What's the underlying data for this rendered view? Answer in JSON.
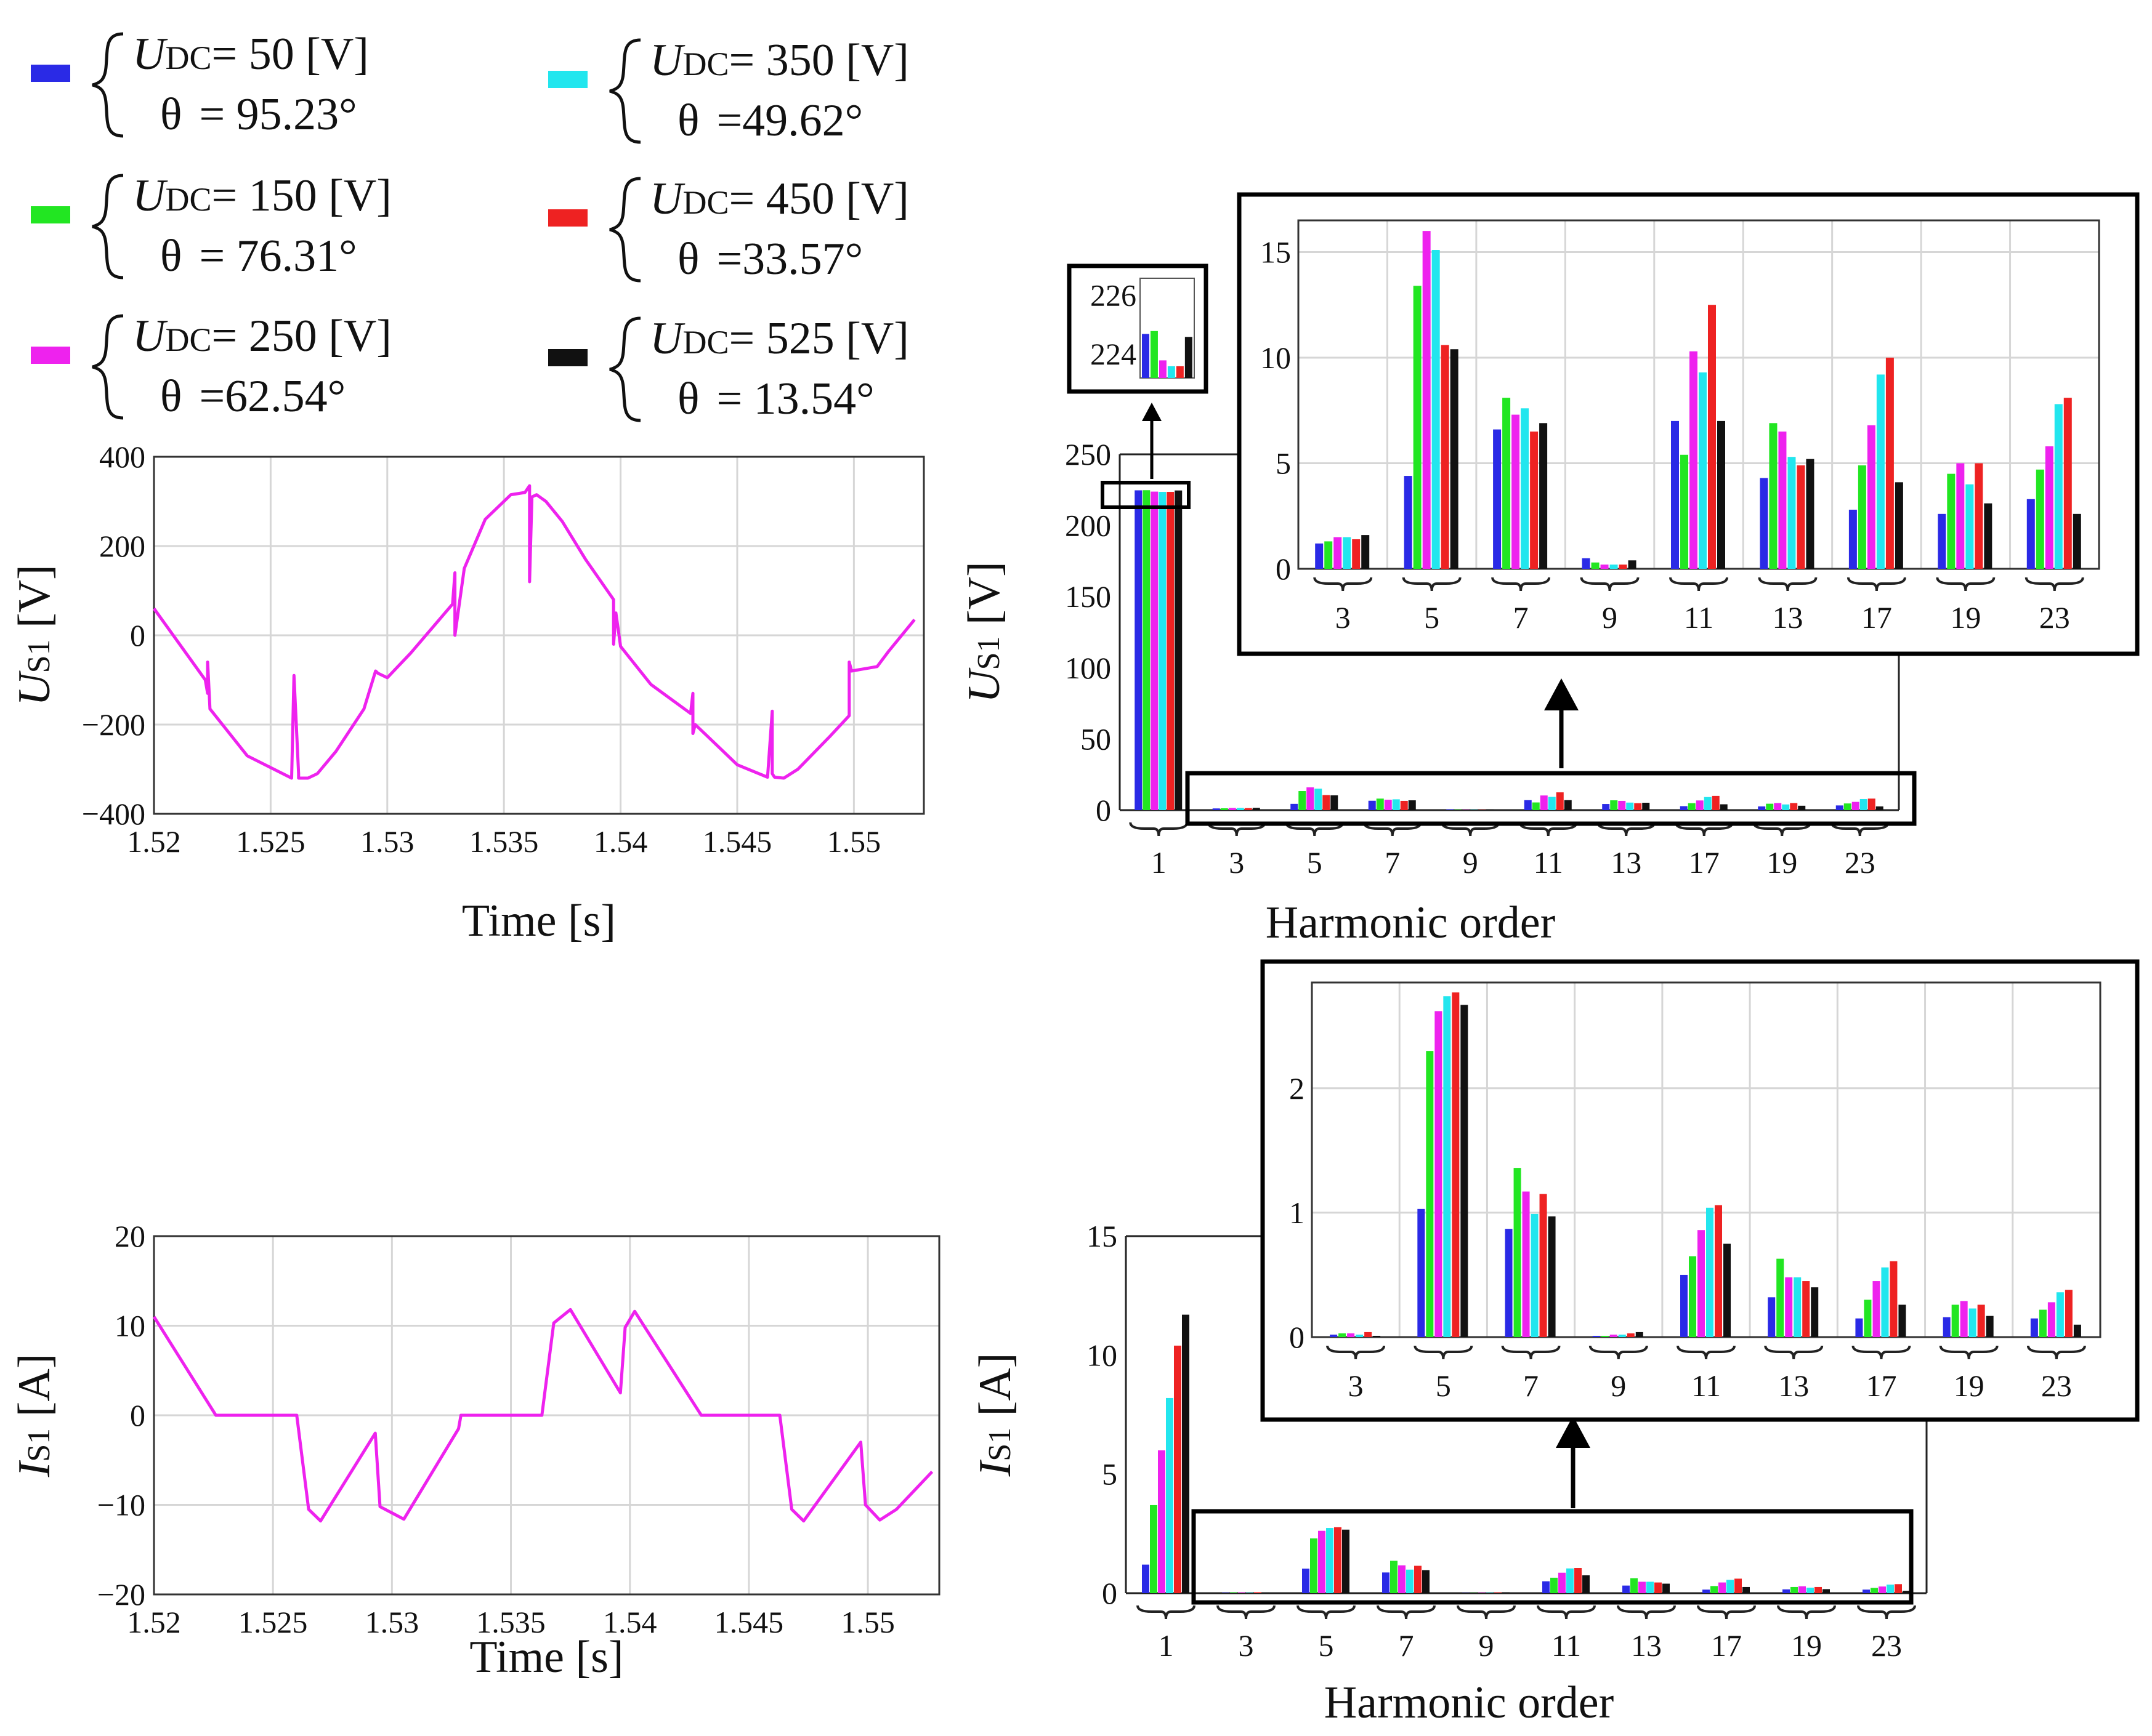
{
  "colors": {
    "udc50": "#2a2ae6",
    "udc150": "#22e622",
    "udc250": "#ee22ee",
    "udc350": "#22e6ee",
    "udc450": "#ee2222",
    "udc525": "#111111",
    "trace": "#ee22ee"
  },
  "legend": [
    {
      "series": "udc50",
      "udc_label": "U",
      "udc_sub": "DC",
      "udc_value": "= 50  [V]",
      "theta_symbol": "θ",
      "theta_value": "= 95.23°"
    },
    {
      "series": "udc150",
      "udc_label": "U",
      "udc_sub": "DC",
      "udc_value": "= 150 [V]",
      "theta_symbol": "θ",
      "theta_value": "= 76.31°"
    },
    {
      "series": "udc250",
      "udc_label": "U",
      "udc_sub": "DC",
      "udc_value": "= 250 [V]",
      "theta_symbol": "θ",
      "theta_value": "=62.54°"
    },
    {
      "series": "udc350",
      "udc_label": "U",
      "udc_sub": "DC",
      "udc_value": "= 350 [V]",
      "theta_symbol": "θ",
      "theta_value": "=49.62°"
    },
    {
      "series": "udc450",
      "udc_label": "U",
      "udc_sub": "DC",
      "udc_value": "= 450 [V]",
      "theta_symbol": "θ",
      "theta_value": "=33.57°"
    },
    {
      "series": "udc525",
      "udc_label": "U",
      "udc_sub": "DC",
      "udc_value": "= 525 [V]",
      "theta_symbol": "θ",
      "theta_value": "= 13.54°"
    }
  ],
  "chart_data": [
    {
      "id": "us1-time",
      "type": "line",
      "xlabel": "Time [s]",
      "ylabel_main": "U",
      "ylabel_sub": "S1",
      "ylabel_unit": "[V]",
      "xlim": [
        1.52,
        1.553
      ],
      "ylim": [
        -400,
        400
      ],
      "xticks": [
        1.52,
        1.525,
        1.53,
        1.535,
        1.54,
        1.545,
        1.55
      ],
      "xtick_labels": [
        "1.52",
        "1.525",
        "1.53",
        "1.535",
        "1.54",
        "1.545",
        "1.55"
      ],
      "yticks": [
        -400,
        -200,
        0,
        200,
        400
      ],
      "ytick_labels": [
        "−400",
        "−200",
        "0",
        "200",
        "400"
      ],
      "series": [
        {
          "color": "udc250",
          "x": [
            1.52,
            1.5222,
            1.5223,
            1.5223,
            1.5224,
            1.524,
            1.5259,
            1.526,
            1.5262,
            1.5262,
            1.5266,
            1.527,
            1.5278,
            1.529,
            1.5295,
            1.5296,
            1.53,
            1.531,
            1.5328,
            1.5329,
            1.5329,
            1.5333,
            1.5342,
            1.5353,
            1.5359,
            1.5361,
            1.5361,
            1.5362,
            1.5364,
            1.5368,
            1.5375,
            1.5385,
            1.5397,
            1.5397,
            1.5398,
            1.54,
            1.5413,
            1.543,
            1.5431,
            1.5431,
            1.5432,
            1.545,
            1.5463,
            1.5465,
            1.5465,
            1.5466,
            1.547,
            1.5476,
            1.549,
            1.5498,
            1.5498,
            1.5499,
            1.551,
            1.5515,
            1.5526
          ],
          "y": [
            60,
            -100,
            -130,
            -60,
            -165,
            -270,
            -320,
            -90,
            -310,
            -320,
            -320,
            -310,
            -260,
            -165,
            -80,
            -85,
            -95,
            -40,
            70,
            140,
            0,
            150,
            260,
            315,
            320,
            335,
            120,
            310,
            315,
            300,
            255,
            170,
            80,
            -20,
            50,
            -25,
            -110,
            -175,
            -130,
            -220,
            -200,
            -290,
            -318,
            -170,
            -310,
            -318,
            -320,
            -300,
            -225,
            -180,
            -60,
            -80,
            -70,
            -35,
            35
          ]
        }
      ]
    },
    {
      "id": "is1-time",
      "type": "line",
      "xlabel": "Time [s]",
      "ylabel_main": "I",
      "ylabel_sub": "S1",
      "ylabel_unit": "[A]",
      "xlim": [
        1.52,
        1.553
      ],
      "ylim": [
        -20,
        20
      ],
      "xticks": [
        1.52,
        1.525,
        1.53,
        1.535,
        1.54,
        1.545,
        1.55
      ],
      "xtick_labels": [
        "1.52",
        "1.525",
        "1.53",
        "1.535",
        "1.54",
        "1.545",
        "1.55"
      ],
      "yticks": [
        -20,
        -10,
        0,
        10,
        20
      ],
      "ytick_labels": [
        "−20",
        "−10",
        "0",
        "10",
        "20"
      ],
      "series": [
        {
          "color": "udc250",
          "x": [
            1.52,
            1.5226,
            1.526,
            1.5265,
            1.527,
            1.5293,
            1.5295,
            1.5305,
            1.5328,
            1.5329,
            1.5363,
            1.5368,
            1.5375,
            1.5396,
            1.5398,
            1.5402,
            1.543,
            1.5463,
            1.5468,
            1.5473,
            1.5497,
            1.5499,
            1.5505,
            1.5512,
            1.5527
          ],
          "y": [
            11,
            0,
            0,
            -10.5,
            -11.8,
            -2,
            -10.2,
            -11.6,
            -1.5,
            0,
            0,
            10.3,
            11.8,
            2.5,
            9.8,
            11.6,
            0,
            0,
            -10.5,
            -11.8,
            -3,
            -10,
            -11.7,
            -10.5,
            -6.3
          ]
        }
      ]
    },
    {
      "id": "us1-harmonic",
      "type": "bar",
      "xlabel": "Harmonic order",
      "ylabel_main": "U",
      "ylabel_sub": "S1",
      "ylabel_unit": "[V]",
      "categories": [
        "1",
        "3",
        "5",
        "7",
        "9",
        "11",
        "13",
        "17",
        "19",
        "23"
      ],
      "ylim": [
        0,
        250
      ],
      "yticks": [
        0,
        50,
        100,
        150,
        200,
        250
      ],
      "ytick_labels": [
        "0",
        "50",
        "100",
        "150",
        "200",
        "250"
      ],
      "series": [
        {
          "color": "udc50",
          "values": [
            224.7,
            1.2,
            4.4,
            6.6,
            0.5,
            7.0,
            4.3,
            2.8,
            2.6,
            3.3
          ]
        },
        {
          "color": "udc150",
          "values": [
            224.8,
            1.3,
            13.4,
            8.1,
            0.3,
            5.4,
            6.9,
            4.9,
            4.5,
            4.7
          ]
        },
        {
          "color": "udc250",
          "values": [
            223.8,
            1.5,
            16.0,
            7.3,
            0.2,
            10.3,
            6.5,
            6.8,
            5.0,
            5.8
          ]
        },
        {
          "color": "udc350",
          "values": [
            223.6,
            1.5,
            15.1,
            7.6,
            0.2,
            9.3,
            5.3,
            9.2,
            4.0,
            7.8
          ]
        },
        {
          "color": "udc450",
          "values": [
            223.6,
            1.4,
            10.6,
            6.5,
            0.2,
            12.5,
            4.9,
            10.0,
            5.0,
            8.1
          ]
        },
        {
          "color": "udc525",
          "values": [
            224.6,
            1.6,
            10.4,
            6.9,
            0.4,
            7.0,
            5.2,
            4.1,
            3.1,
            2.6
          ]
        }
      ],
      "inset_zoom": {
        "categories": [
          "3",
          "5",
          "7",
          "9",
          "11",
          "13",
          "17",
          "19",
          "23"
        ],
        "ylim": [
          0,
          16.5
        ],
        "yticks": [
          0,
          5,
          10,
          15
        ],
        "ytick_labels": [
          "0",
          "5",
          "10",
          "15"
        ]
      },
      "inset_fund": {
        "ylim": [
          223.2,
          226.6
        ],
        "yticks": [
          224,
          226
        ],
        "ytick_labels": [
          "224",
          "226"
        ]
      }
    },
    {
      "id": "is1-harmonic",
      "type": "bar",
      "xlabel": "Harmonic order",
      "ylabel_main": "I",
      "ylabel_sub": "S1",
      "ylabel_unit": "[A]",
      "categories": [
        "1",
        "3",
        "5",
        "7",
        "9",
        "11",
        "13",
        "17",
        "19",
        "23"
      ],
      "ylim": [
        0,
        15
      ],
      "yticks": [
        0,
        5,
        10,
        15
      ],
      "ytick_labels": [
        "0",
        "5",
        "10",
        "15"
      ],
      "series": [
        {
          "color": "udc50",
          "values": [
            1.2,
            0.02,
            1.03,
            0.87,
            0.01,
            0.5,
            0.32,
            0.15,
            0.16,
            0.15
          ]
        },
        {
          "color": "udc150",
          "values": [
            3.7,
            0.03,
            2.3,
            1.36,
            0.01,
            0.65,
            0.63,
            0.3,
            0.26,
            0.22
          ]
        },
        {
          "color": "udc250",
          "values": [
            6.0,
            0.03,
            2.62,
            1.17,
            0.02,
            0.86,
            0.48,
            0.45,
            0.29,
            0.28
          ]
        },
        {
          "color": "udc350",
          "values": [
            8.2,
            0.02,
            2.74,
            0.99,
            0.02,
            1.04,
            0.48,
            0.56,
            0.23,
            0.36
          ]
        },
        {
          "color": "udc450",
          "values": [
            10.4,
            0.04,
            2.77,
            1.15,
            0.03,
            1.06,
            0.45,
            0.61,
            0.26,
            0.38
          ]
        },
        {
          "color": "udc525",
          "values": [
            11.7,
            0.01,
            2.67,
            0.97,
            0.04,
            0.75,
            0.4,
            0.26,
            0.17,
            0.1
          ]
        }
      ],
      "inset_zoom": {
        "categories": [
          "3",
          "5",
          "7",
          "9",
          "11",
          "13",
          "17",
          "19",
          "23"
        ],
        "ylim": [
          0,
          2.85
        ],
        "yticks": [
          0,
          1,
          2
        ],
        "ytick_labels": [
          "0",
          "1",
          "2"
        ]
      }
    }
  ]
}
